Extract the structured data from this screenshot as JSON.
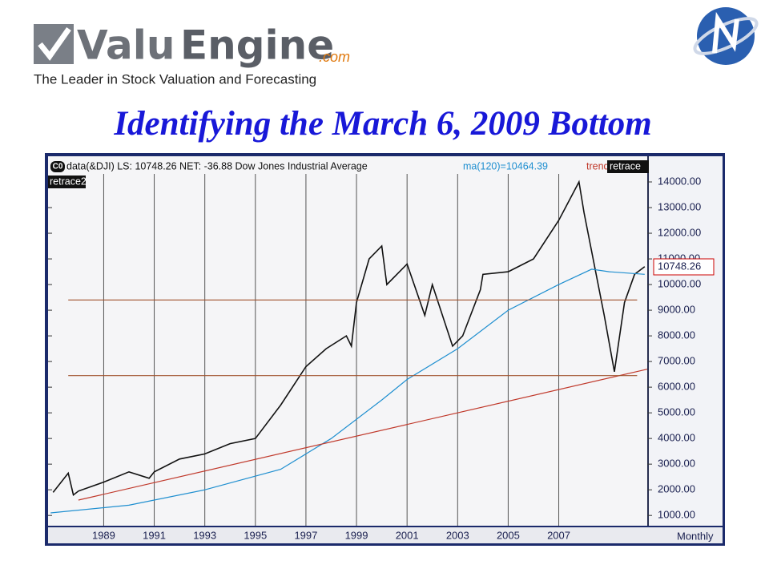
{
  "header": {
    "logo_part1": "Valu",
    "logo_part2": "Engine",
    "logo_suffix": ".com",
    "tagline": "The Leader in Stock Valuation and Forecasting",
    "title": "Identifying the March 6, 2009 Bottom"
  },
  "chart_data": {
    "type": "line",
    "xlim": [
      1986.8,
      2010.5
    ],
    "ylim": [
      600,
      15000
    ],
    "xticks": [
      1989,
      1991,
      1993,
      1995,
      1997,
      1999,
      2001,
      2003,
      2005,
      2007
    ],
    "yticks": [
      {
        "value": 1000,
        "label": "1000.00"
      },
      {
        "value": 2000,
        "label": "2000.00"
      },
      {
        "value": 3000,
        "label": "3000.00"
      },
      {
        "value": 4000,
        "label": "4000.00"
      },
      {
        "value": 5000,
        "label": "5000.00"
      },
      {
        "value": 6000,
        "label": "6000.00"
      },
      {
        "value": 7000,
        "label": "7000.00"
      },
      {
        "value": 8000,
        "label": "8000.00"
      },
      {
        "value": 9000,
        "label": "9000.00"
      },
      {
        "value": 10000,
        "label": "10000.00"
      },
      {
        "value": 11000,
        "label": "11000.00"
      },
      {
        "value": 12000,
        "label": "12000.00"
      },
      {
        "value": 13000,
        "label": "13000.00"
      },
      {
        "value": 14000,
        "label": "14000.00"
      }
    ],
    "grid": true,
    "badge": "C0",
    "last_price_label": "10748.26",
    "period_label": "Monthly",
    "series": [
      {
        "name": "data(&DJI) LS: 10748.26 NET: -36.88 Dow Jones Industrial Average",
        "color": "#111111",
        "x": [
          1987.0,
          1987.6,
          1987.8,
          1988.0,
          1989.0,
          1990.0,
          1990.8,
          1991.0,
          1992.0,
          1993.0,
          1994.0,
          1995.0,
          1996.0,
          1997.0,
          1997.8,
          1998.6,
          1998.8,
          1999.0,
          1999.5,
          2000.0,
          2000.2,
          2001.0,
          2001.7,
          2002.0,
          2002.5,
          2002.8,
          2003.2,
          2003.9,
          2004.0,
          2005.0,
          2006.0,
          2007.0,
          2007.8,
          2008.0,
          2008.8,
          2009.2,
          2009.6,
          2010.0,
          2010.4
        ],
        "values": [
          1900,
          2650,
          1800,
          1950,
          2300,
          2700,
          2450,
          2700,
          3200,
          3400,
          3800,
          4000,
          5300,
          6800,
          7500,
          8000,
          7600,
          9300,
          11000,
          11500,
          10000,
          10800,
          8800,
          10000,
          8500,
          7600,
          8000,
          9800,
          10400,
          10500,
          11000,
          12500,
          14000,
          12800,
          8800,
          6600,
          9300,
          10400,
          10700
        ]
      },
      {
        "name": "ma(120)=10464.39",
        "color": "#1f8fd0",
        "x": [
          1986.9,
          1990,
          1993,
          1996,
          1998,
          2000,
          2001,
          2003,
          2005,
          2007,
          2008.3,
          2009,
          2010.4
        ],
        "values": [
          1100,
          1400,
          2000,
          2800,
          4000,
          5500,
          6300,
          7500,
          9000,
          10000,
          10600,
          10500,
          10400
        ]
      },
      {
        "name": "trend",
        "color": "#c0392b",
        "x": [
          1988.0,
          2010.5
        ],
        "values": [
          1600,
          6700
        ]
      },
      {
        "name": "retrace",
        "color": "#a0522d",
        "x": [
          1987.6,
          2010.1
        ],
        "values": [
          9400,
          9400
        ]
      },
      {
        "name": "retrace2",
        "color": "#a0522d",
        "x": [
          1987.6,
          2010.1
        ],
        "values": [
          6450,
          6450
        ]
      }
    ]
  }
}
